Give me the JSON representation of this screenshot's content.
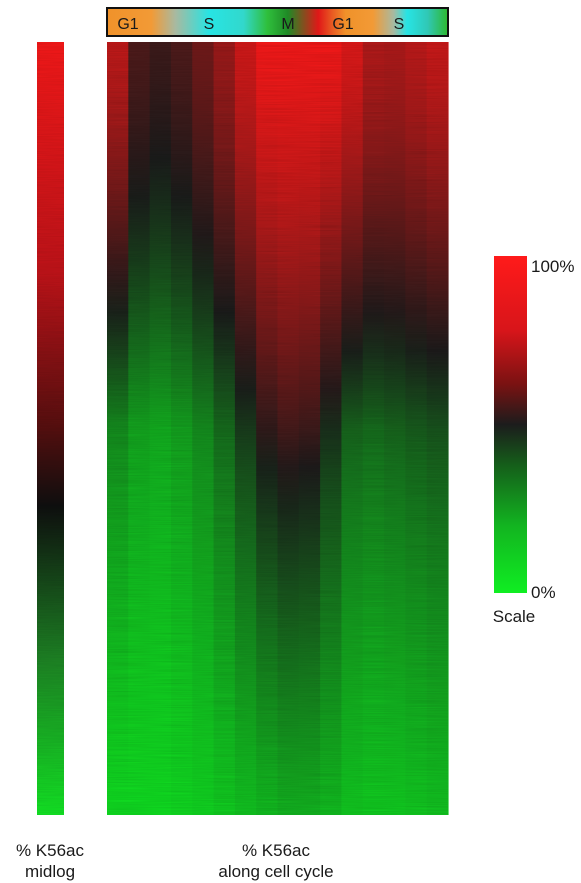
{
  "chart_data": [
    {
      "type": "heatmap",
      "name_hint": "midlog",
      "xlabel": "% K56ac\nmidlog",
      "columns": 1,
      "values_sorted": "descending from top (red) to bottom (green)"
    },
    {
      "type": "heatmap",
      "xlabel": "% K56ac\nalong cell cycle",
      "phases": [
        "G1",
        "S",
        "M",
        "G1",
        "S"
      ],
      "phase_colors": [
        "#f0922a",
        "#27e4e4",
        "#e01818",
        "#f0922a",
        "#27e4e4"
      ],
      "columns": 16,
      "profile_columns": [
        [
          0.88,
          0.22,
          0.02
        ],
        [
          0.62,
          0.16,
          0.02
        ],
        [
          0.58,
          0.14,
          0.02
        ],
        [
          0.62,
          0.17,
          0.03
        ],
        [
          0.7,
          0.22,
          0.04
        ],
        [
          0.8,
          0.3,
          0.06
        ],
        [
          0.92,
          0.42,
          0.08
        ],
        [
          1.0,
          0.55,
          0.1
        ],
        [
          1.0,
          0.6,
          0.12
        ],
        [
          1.0,
          0.58,
          0.12
        ],
        [
          1.0,
          0.45,
          0.1
        ],
        [
          0.95,
          0.32,
          0.07
        ],
        [
          0.85,
          0.3,
          0.06
        ],
        [
          0.84,
          0.32,
          0.06
        ],
        [
          0.87,
          0.34,
          0.07
        ],
        [
          0.9,
          0.36,
          0.08
        ]
      ],
      "profile_breakpoints": [
        0.0,
        0.5,
        1.0
      ]
    }
  ],
  "scale": {
    "label": "Scale",
    "max_label": "100%",
    "min_label": "0%",
    "colors": {
      "high": "#ff1a1a",
      "mid": "#1c1c1c",
      "low": "#10ee22"
    }
  }
}
